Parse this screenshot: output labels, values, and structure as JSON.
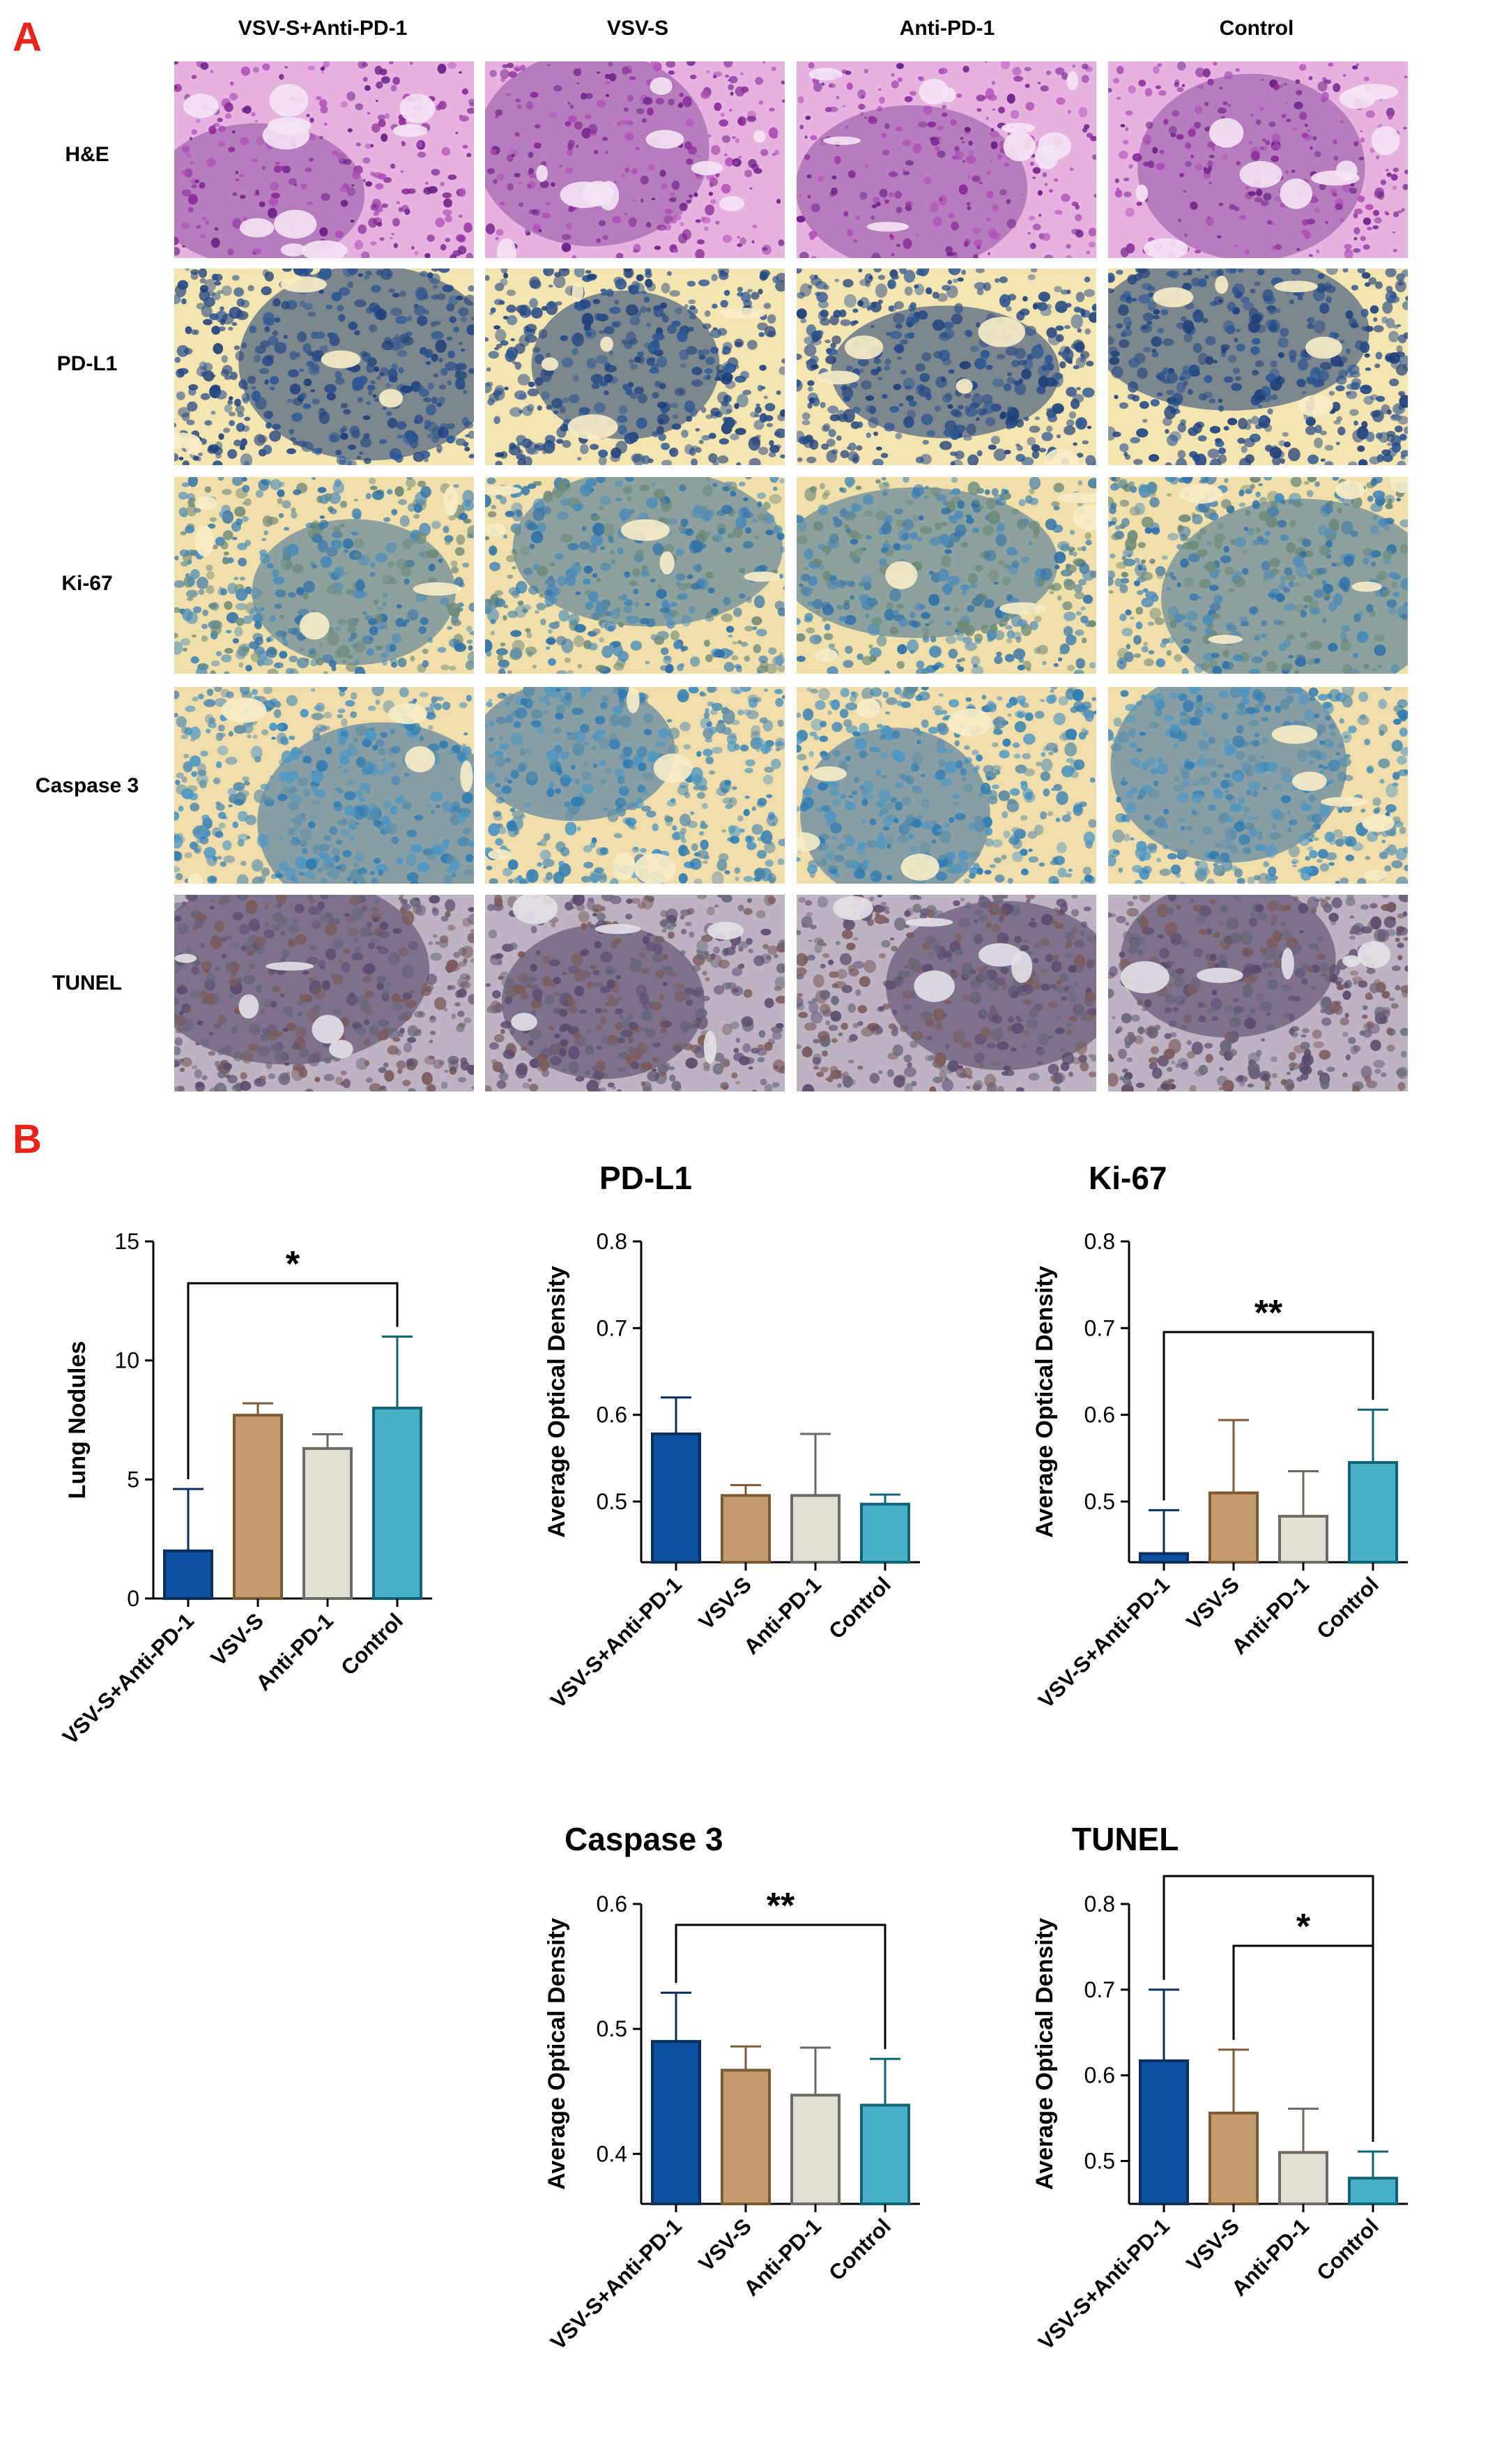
{
  "panel_labels": {
    "a": "A",
    "b": "B"
  },
  "histology": {
    "columns": [
      "VSV-S+Anti-PD-1",
      "VSV-S",
      "Anti-PD-1",
      "Control"
    ],
    "rows": [
      "H&E",
      "PD-L1",
      "Ki-67",
      "Caspase 3",
      "TUNEL"
    ]
  },
  "colors": {
    "VSV-S+Anti-PD-1": {
      "fill": "#0b4f9e",
      "edge": "#0a2f5e"
    },
    "VSV-S": {
      "fill": "#c49a6c",
      "edge": "#7d5a35"
    },
    "Anti-PD-1": {
      "fill": "#e3ded4",
      "edge": "#6e6a63"
    },
    "Control": {
      "fill": "#4ab0c9",
      "edge": "#106478"
    },
    "panel_letter": "#e8231a"
  },
  "chart_data": [
    {
      "type": "bar",
      "title": "",
      "ylabel": "Lung Nodules",
      "categories": [
        "VSV-S+Anti-PD-1",
        "VSV-S",
        "Anti-PD-1",
        "Control"
      ],
      "values": [
        2.0,
        7.7,
        6.3,
        8.0
      ],
      "errors": [
        2.6,
        0.5,
        0.6,
        3.0
      ],
      "ylim": [
        0,
        15
      ],
      "yticks": [
        "0",
        "5",
        "10",
        "15"
      ],
      "significance": [
        {
          "from": 0,
          "to": 3,
          "label": "*"
        }
      ]
    },
    {
      "type": "bar",
      "title": "PD-L1",
      "ylabel": "Average Optical Density",
      "categories": [
        "VSV-S+Anti-PD-1",
        "VSV-S",
        "Anti-PD-1",
        "Control"
      ],
      "values": [
        0.578,
        0.507,
        0.507,
        0.497
      ],
      "errors": [
        0.042,
        0.012,
        0.071,
        0.011
      ],
      "ylim": [
        0.43,
        0.8
      ],
      "yticks": [
        "0.5",
        "0.6",
        "0.7",
        "0.8"
      ],
      "significance": []
    },
    {
      "type": "bar",
      "title": "Ki-67",
      "ylabel": "Average Optical Density",
      "categories": [
        "VSV-S+Anti-PD-1",
        "VSV-S",
        "Anti-PD-1",
        "Control"
      ],
      "values": [
        0.44,
        0.51,
        0.483,
        0.545
      ],
      "errors": [
        0.05,
        0.084,
        0.052,
        0.061
      ],
      "ylim": [
        0.43,
        0.8
      ],
      "yticks": [
        "0.5",
        "0.6",
        "0.7",
        "0.8"
      ],
      "significance": [
        {
          "from": 0,
          "to": 3,
          "label": "**"
        }
      ]
    },
    {
      "type": "bar",
      "title": "Caspase 3",
      "ylabel": "Average Optical Density",
      "categories": [
        "VSV-S+Anti-PD-1",
        "VSV-S",
        "Anti-PD-1",
        "Control"
      ],
      "values": [
        0.49,
        0.467,
        0.447,
        0.439
      ],
      "errors": [
        0.039,
        0.019,
        0.038,
        0.037
      ],
      "ylim": [
        0.36,
        0.6
      ],
      "yticks": [
        "0.4",
        "0.5",
        "0.6"
      ],
      "significance": [
        {
          "from": 0,
          "to": 3,
          "label": "**"
        }
      ]
    },
    {
      "type": "bar",
      "title": "TUNEL",
      "ylabel": "Average Optical Density",
      "categories": [
        "VSV-S+Anti-PD-1",
        "VSV-S",
        "Anti-PD-1",
        "Control"
      ],
      "values": [
        0.617,
        0.556,
        0.51,
        0.48
      ],
      "errors": [
        0.083,
        0.074,
        0.051,
        0.031
      ],
      "ylim": [
        0.45,
        0.8
      ],
      "yticks": [
        "0.5",
        "0.6",
        "0.7",
        "0.8"
      ],
      "significance": [
        {
          "from": 0,
          "to": 3,
          "label": "***"
        },
        {
          "from": 1,
          "to": 3,
          "label": "*"
        }
      ]
    }
  ]
}
